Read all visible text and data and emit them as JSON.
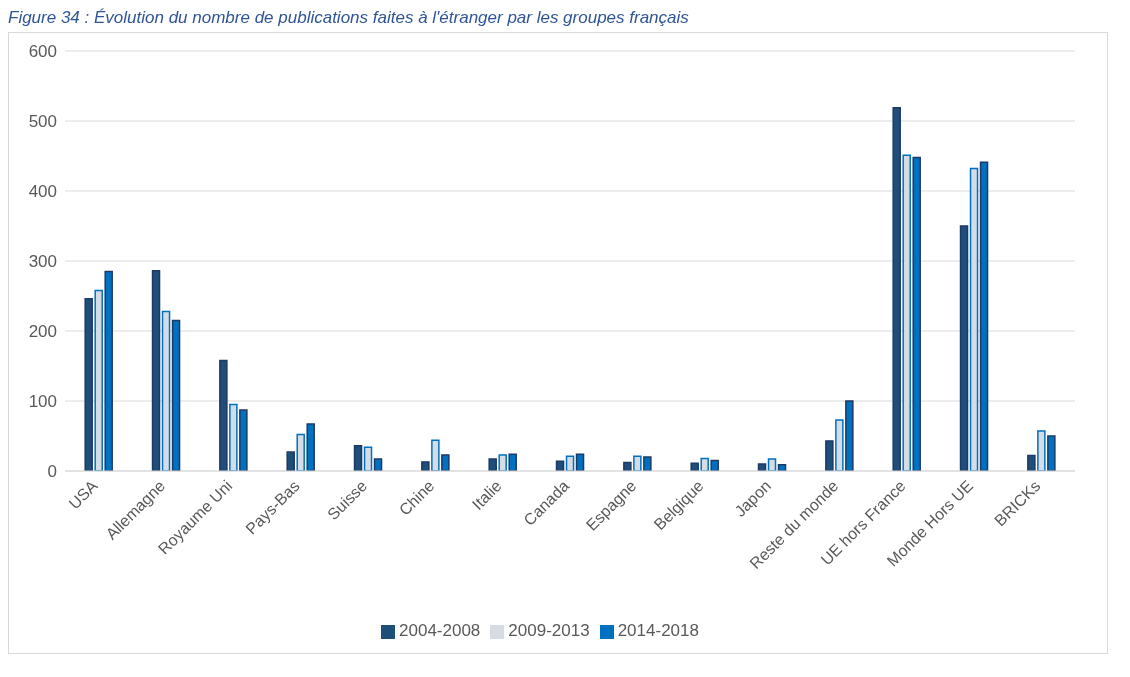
{
  "chart_data": {
    "type": "bar",
    "title": "Figure 34 : Évolution du nombre de publications faites à l'étranger par les groupes français",
    "categories": [
      "USA",
      "Allemagne",
      "Royaume Uni",
      "Pays-Bas",
      "Suisse",
      "Chine",
      "Italie",
      "Canada",
      "Espagne",
      "Belgique",
      "Japon",
      "Reste du monde",
      "UE hors France",
      "Monde Hors UE",
      "BRICKs"
    ],
    "series": [
      {
        "name": "2004-2008",
        "color": "#1f4e79",
        "values": [
          246,
          286,
          158,
          27,
          36,
          13,
          17,
          14,
          12,
          11,
          10,
          43,
          519,
          350,
          22
        ]
      },
      {
        "name": "2009-2013",
        "color": "#d6dce4",
        "values": [
          258,
          228,
          95,
          52,
          34,
          44,
          23,
          21,
          21,
          18,
          17,
          73,
          451,
          432,
          57
        ]
      },
      {
        "name": "2014-2018",
        "color": "#0070c0",
        "values": [
          285,
          215,
          87,
          67,
          17,
          23,
          24,
          24,
          20,
          15,
          9,
          100,
          448,
          441,
          50
        ]
      }
    ],
    "ylim": [
      0,
      600
    ],
    "yticks": [
      0,
      100,
      200,
      300,
      400,
      500,
      600
    ],
    "grid": "y",
    "legend": "bottom"
  }
}
